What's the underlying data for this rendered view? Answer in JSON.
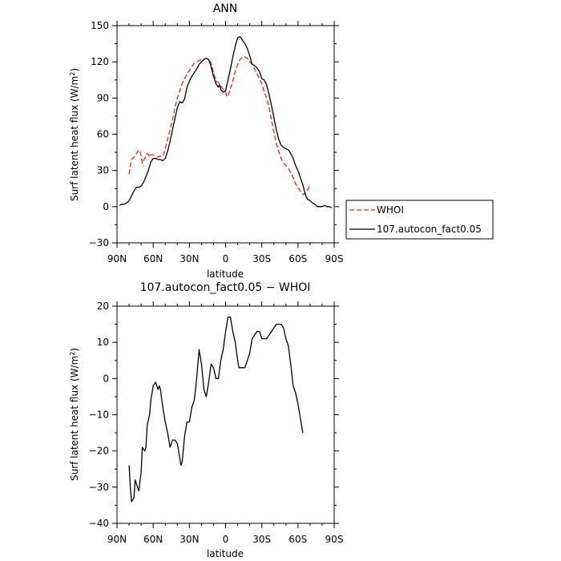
{
  "chart_data": [
    {
      "type": "line",
      "title": "ANN",
      "xlabel": "latitude",
      "ylabel": "Surf latent heat flux (W/m²)",
      "xlim": [
        -90,
        90
      ],
      "ylim": [
        -30,
        150
      ],
      "x_ticks": [
        {
          "value": -90,
          "label": "90N"
        },
        {
          "value": -60,
          "label": "60N"
        },
        {
          "value": -30,
          "label": "30N"
        },
        {
          "value": 0,
          "label": "0"
        },
        {
          "value": 30,
          "label": "30S"
        },
        {
          "value": 60,
          "label": "60S"
        },
        {
          "value": 90,
          "label": "90S"
        }
      ],
      "y_ticks": [
        -30,
        0,
        30,
        60,
        90,
        120,
        150
      ],
      "legend_position": "right",
      "series": [
        {
          "name": "WHOI",
          "color": "#e8211b",
          "dash": "dashed",
          "points": [
            [
              -80,
              27
            ],
            [
              -79,
              34
            ],
            [
              -78,
              39
            ],
            [
              -76,
              41
            ],
            [
              -74,
              44
            ],
            [
              -72,
              47
            ],
            [
              -71,
              46
            ],
            [
              -70,
              42
            ],
            [
              -69,
              36
            ],
            [
              -68,
              38
            ],
            [
              -67,
              40
            ],
            [
              -66,
              42
            ],
            [
              -65,
              44
            ],
            [
              -64,
              43
            ],
            [
              -63,
              41
            ],
            [
              -62,
              43
            ],
            [
              -60,
              43
            ],
            [
              -58,
              42
            ],
            [
              -56,
              41
            ],
            [
              -54,
              42
            ],
            [
              -52,
              42
            ],
            [
              -50,
              48
            ],
            [
              -48,
              56
            ],
            [
              -46,
              64
            ],
            [
              -44,
              72
            ],
            [
              -42,
              82
            ],
            [
              -40,
              90
            ],
            [
              -38,
              96
            ],
            [
              -36,
              102
            ],
            [
              -34,
              106
            ],
            [
              -32,
              110
            ],
            [
              -30,
              113
            ],
            [
              -28,
              116
            ],
            [
              -26,
              119
            ],
            [
              -24,
              120
            ],
            [
              -22,
              121
            ],
            [
              -20,
              122
            ],
            [
              -18,
              122
            ],
            [
              -16,
              123
            ],
            [
              -14,
              122
            ],
            [
              -12,
              119
            ],
            [
              -10,
              111
            ],
            [
              -8,
              104
            ],
            [
              -6,
              103
            ],
            [
              -4,
              100
            ],
            [
              -2,
              97
            ],
            [
              0,
              95
            ],
            [
              1,
              91
            ],
            [
              2,
              92
            ],
            [
              4,
              98
            ],
            [
              6,
              104
            ],
            [
              8,
              112
            ],
            [
              10,
              118
            ],
            [
              12,
              122
            ],
            [
              14,
              124
            ],
            [
              16,
              124
            ],
            [
              18,
              123
            ],
            [
              20,
              120
            ],
            [
              22,
              118
            ],
            [
              24,
              114
            ],
            [
              26,
              110
            ],
            [
              28,
              106
            ],
            [
              30,
              102
            ],
            [
              32,
              95
            ],
            [
              34,
              90
            ],
            [
              36,
              82
            ],
            [
              38,
              72
            ],
            [
              40,
              62
            ],
            [
              42,
              53
            ],
            [
              44,
              46
            ],
            [
              46,
              40
            ],
            [
              48,
              36
            ],
            [
              50,
              34
            ],
            [
              52,
              32
            ],
            [
              54,
              28
            ],
            [
              56,
              24
            ],
            [
              58,
              19
            ],
            [
              60,
              16
            ],
            [
              62,
              13
            ],
            [
              64,
              10
            ],
            [
              66,
              11
            ],
            [
              68,
              14
            ],
            [
              70,
              18
            ]
          ]
        },
        {
          "name": "107.autocon_fact0.05",
          "color": "#000000",
          "dash": "solid",
          "points": [
            [
              -88,
              1
            ],
            [
              -86,
              2
            ],
            [
              -84,
              2
            ],
            [
              -82,
              3
            ],
            [
              -80,
              5
            ],
            [
              -78,
              9
            ],
            [
              -76,
              13
            ],
            [
              -74,
              16
            ],
            [
              -72,
              16
            ],
            [
              -70,
              17
            ],
            [
              -68,
              20
            ],
            [
              -66,
              25
            ],
            [
              -64,
              30
            ],
            [
              -62,
              37
            ],
            [
              -60,
              40
            ],
            [
              -58,
              40
            ],
            [
              -56,
              39
            ],
            [
              -54,
              39
            ],
            [
              -52,
              38
            ],
            [
              -50,
              40
            ],
            [
              -48,
              46
            ],
            [
              -46,
              54
            ],
            [
              -44,
              64
            ],
            [
              -42,
              73
            ],
            [
              -40,
              82
            ],
            [
              -38,
              87
            ],
            [
              -36,
              86
            ],
            [
              -34,
              89
            ],
            [
              -32,
              99
            ],
            [
              -30,
              104
            ],
            [
              -28,
              108
            ],
            [
              -26,
              111
            ],
            [
              -24,
              114
            ],
            [
              -22,
              118
            ],
            [
              -20,
              120
            ],
            [
              -18,
              122
            ],
            [
              -16,
              123
            ],
            [
              -14,
              122
            ],
            [
              -12,
              116
            ],
            [
              -10,
              108
            ],
            [
              -8,
              102
            ],
            [
              -6,
              99
            ],
            [
              -5,
              101
            ],
            [
              -4,
              97
            ],
            [
              -2,
              95
            ],
            [
              0,
              96
            ],
            [
              2,
              105
            ],
            [
              4,
              114
            ],
            [
              6,
              124
            ],
            [
              8,
              133
            ],
            [
              10,
              140
            ],
            [
              12,
              141
            ],
            [
              14,
              138
            ],
            [
              16,
              135
            ],
            [
              18,
              131
            ],
            [
              20,
              125
            ],
            [
              22,
              118
            ],
            [
              24,
              117
            ],
            [
              26,
              115
            ],
            [
              28,
              112
            ],
            [
              30,
              106
            ],
            [
              32,
              105
            ],
            [
              34,
              101
            ],
            [
              36,
              93
            ],
            [
              38,
              84
            ],
            [
              40,
              74
            ],
            [
              42,
              64
            ],
            [
              44,
              56
            ],
            [
              46,
              51
            ],
            [
              48,
              49
            ],
            [
              50,
              48
            ],
            [
              52,
              47
            ],
            [
              54,
              44
            ],
            [
              56,
              40
            ],
            [
              58,
              34
            ],
            [
              60,
              30
            ],
            [
              62,
              24
            ],
            [
              64,
              18
            ],
            [
              66,
              10
            ],
            [
              68,
              6
            ],
            [
              70,
              5
            ],
            [
              72,
              3
            ],
            [
              74,
              2
            ],
            [
              76,
              0
            ],
            [
              78,
              0
            ],
            [
              80,
              0
            ],
            [
              82,
              1
            ],
            [
              84,
              0
            ],
            [
              86,
              0
            ],
            [
              88,
              -1
            ]
          ]
        }
      ]
    },
    {
      "type": "line",
      "title": "107.autocon_fact0.05 − WHOI",
      "xlabel": "latitude",
      "ylabel": "Surf latent heat flux (W/m²)",
      "xlim": [
        -90,
        90
      ],
      "ylim": [
        -40,
        20
      ],
      "x_ticks": [
        {
          "value": -90,
          "label": "90N"
        },
        {
          "value": -60,
          "label": "60N"
        },
        {
          "value": -30,
          "label": "30N"
        },
        {
          "value": 0,
          "label": "0"
        },
        {
          "value": 30,
          "label": "30S"
        },
        {
          "value": 60,
          "label": "60S"
        },
        {
          "value": 90,
          "label": "90S"
        }
      ],
      "y_ticks": [
        -40,
        -30,
        -20,
        -10,
        0,
        10,
        20
      ],
      "series": [
        {
          "color": "#000000",
          "dash": "solid",
          "points": [
            [
              -80,
              -24
            ],
            [
              -79,
              -30
            ],
            [
              -78,
              -34
            ],
            [
              -76,
              -33
            ],
            [
              -75,
              -28
            ],
            [
              -74,
              -29
            ],
            [
              -72,
              -31
            ],
            [
              -70,
              -26
            ],
            [
              -69,
              -19
            ],
            [
              -67,
              -20
            ],
            [
              -66,
              -19
            ],
            [
              -65,
              -13
            ],
            [
              -63,
              -10
            ],
            [
              -62,
              -6
            ],
            [
              -60,
              -2
            ],
            [
              -58,
              -1
            ],
            [
              -56,
              -3
            ],
            [
              -55,
              -2
            ],
            [
              -54,
              -3
            ],
            [
              -52,
              -8
            ],
            [
              -50,
              -12
            ],
            [
              -48,
              -15
            ],
            [
              -46,
              -19
            ],
            [
              -44,
              -17
            ],
            [
              -42,
              -17
            ],
            [
              -40,
              -18
            ],
            [
              -38,
              -22
            ],
            [
              -37,
              -24
            ],
            [
              -36,
              -23
            ],
            [
              -34,
              -16
            ],
            [
              -32,
              -12
            ],
            [
              -30,
              -12
            ],
            [
              -28,
              -8
            ],
            [
              -26,
              -6
            ],
            [
              -24,
              0
            ],
            [
              -22,
              8
            ],
            [
              -20,
              4
            ],
            [
              -18,
              -3
            ],
            [
              -16,
              -5
            ],
            [
              -14,
              -1
            ],
            [
              -12,
              4
            ],
            [
              -10,
              3
            ],
            [
              -8,
              0
            ],
            [
              -6,
              0
            ],
            [
              -4,
              5
            ],
            [
              -2,
              8
            ],
            [
              0,
              13
            ],
            [
              2,
              17
            ],
            [
              4,
              17
            ],
            [
              6,
              13
            ],
            [
              8,
              10
            ],
            [
              10,
              5
            ],
            [
              11,
              3
            ],
            [
              14,
              3
            ],
            [
              16,
              3
            ],
            [
              18,
              5
            ],
            [
              20,
              7
            ],
            [
              22,
              11
            ],
            [
              24,
              12
            ],
            [
              26,
              13
            ],
            [
              28,
              13
            ],
            [
              30,
              11
            ],
            [
              32,
              11
            ],
            [
              34,
              11
            ],
            [
              36,
              12
            ],
            [
              38,
              13
            ],
            [
              40,
              14
            ],
            [
              42,
              15
            ],
            [
              44,
              15
            ],
            [
              46,
              15
            ],
            [
              48,
              14
            ],
            [
              50,
              11
            ],
            [
              52,
              9
            ],
            [
              54,
              4
            ],
            [
              56,
              -2
            ],
            [
              58,
              -4
            ],
            [
              60,
              -7
            ],
            [
              62,
              -11
            ],
            [
              64,
              -15
            ]
          ]
        }
      ]
    }
  ]
}
